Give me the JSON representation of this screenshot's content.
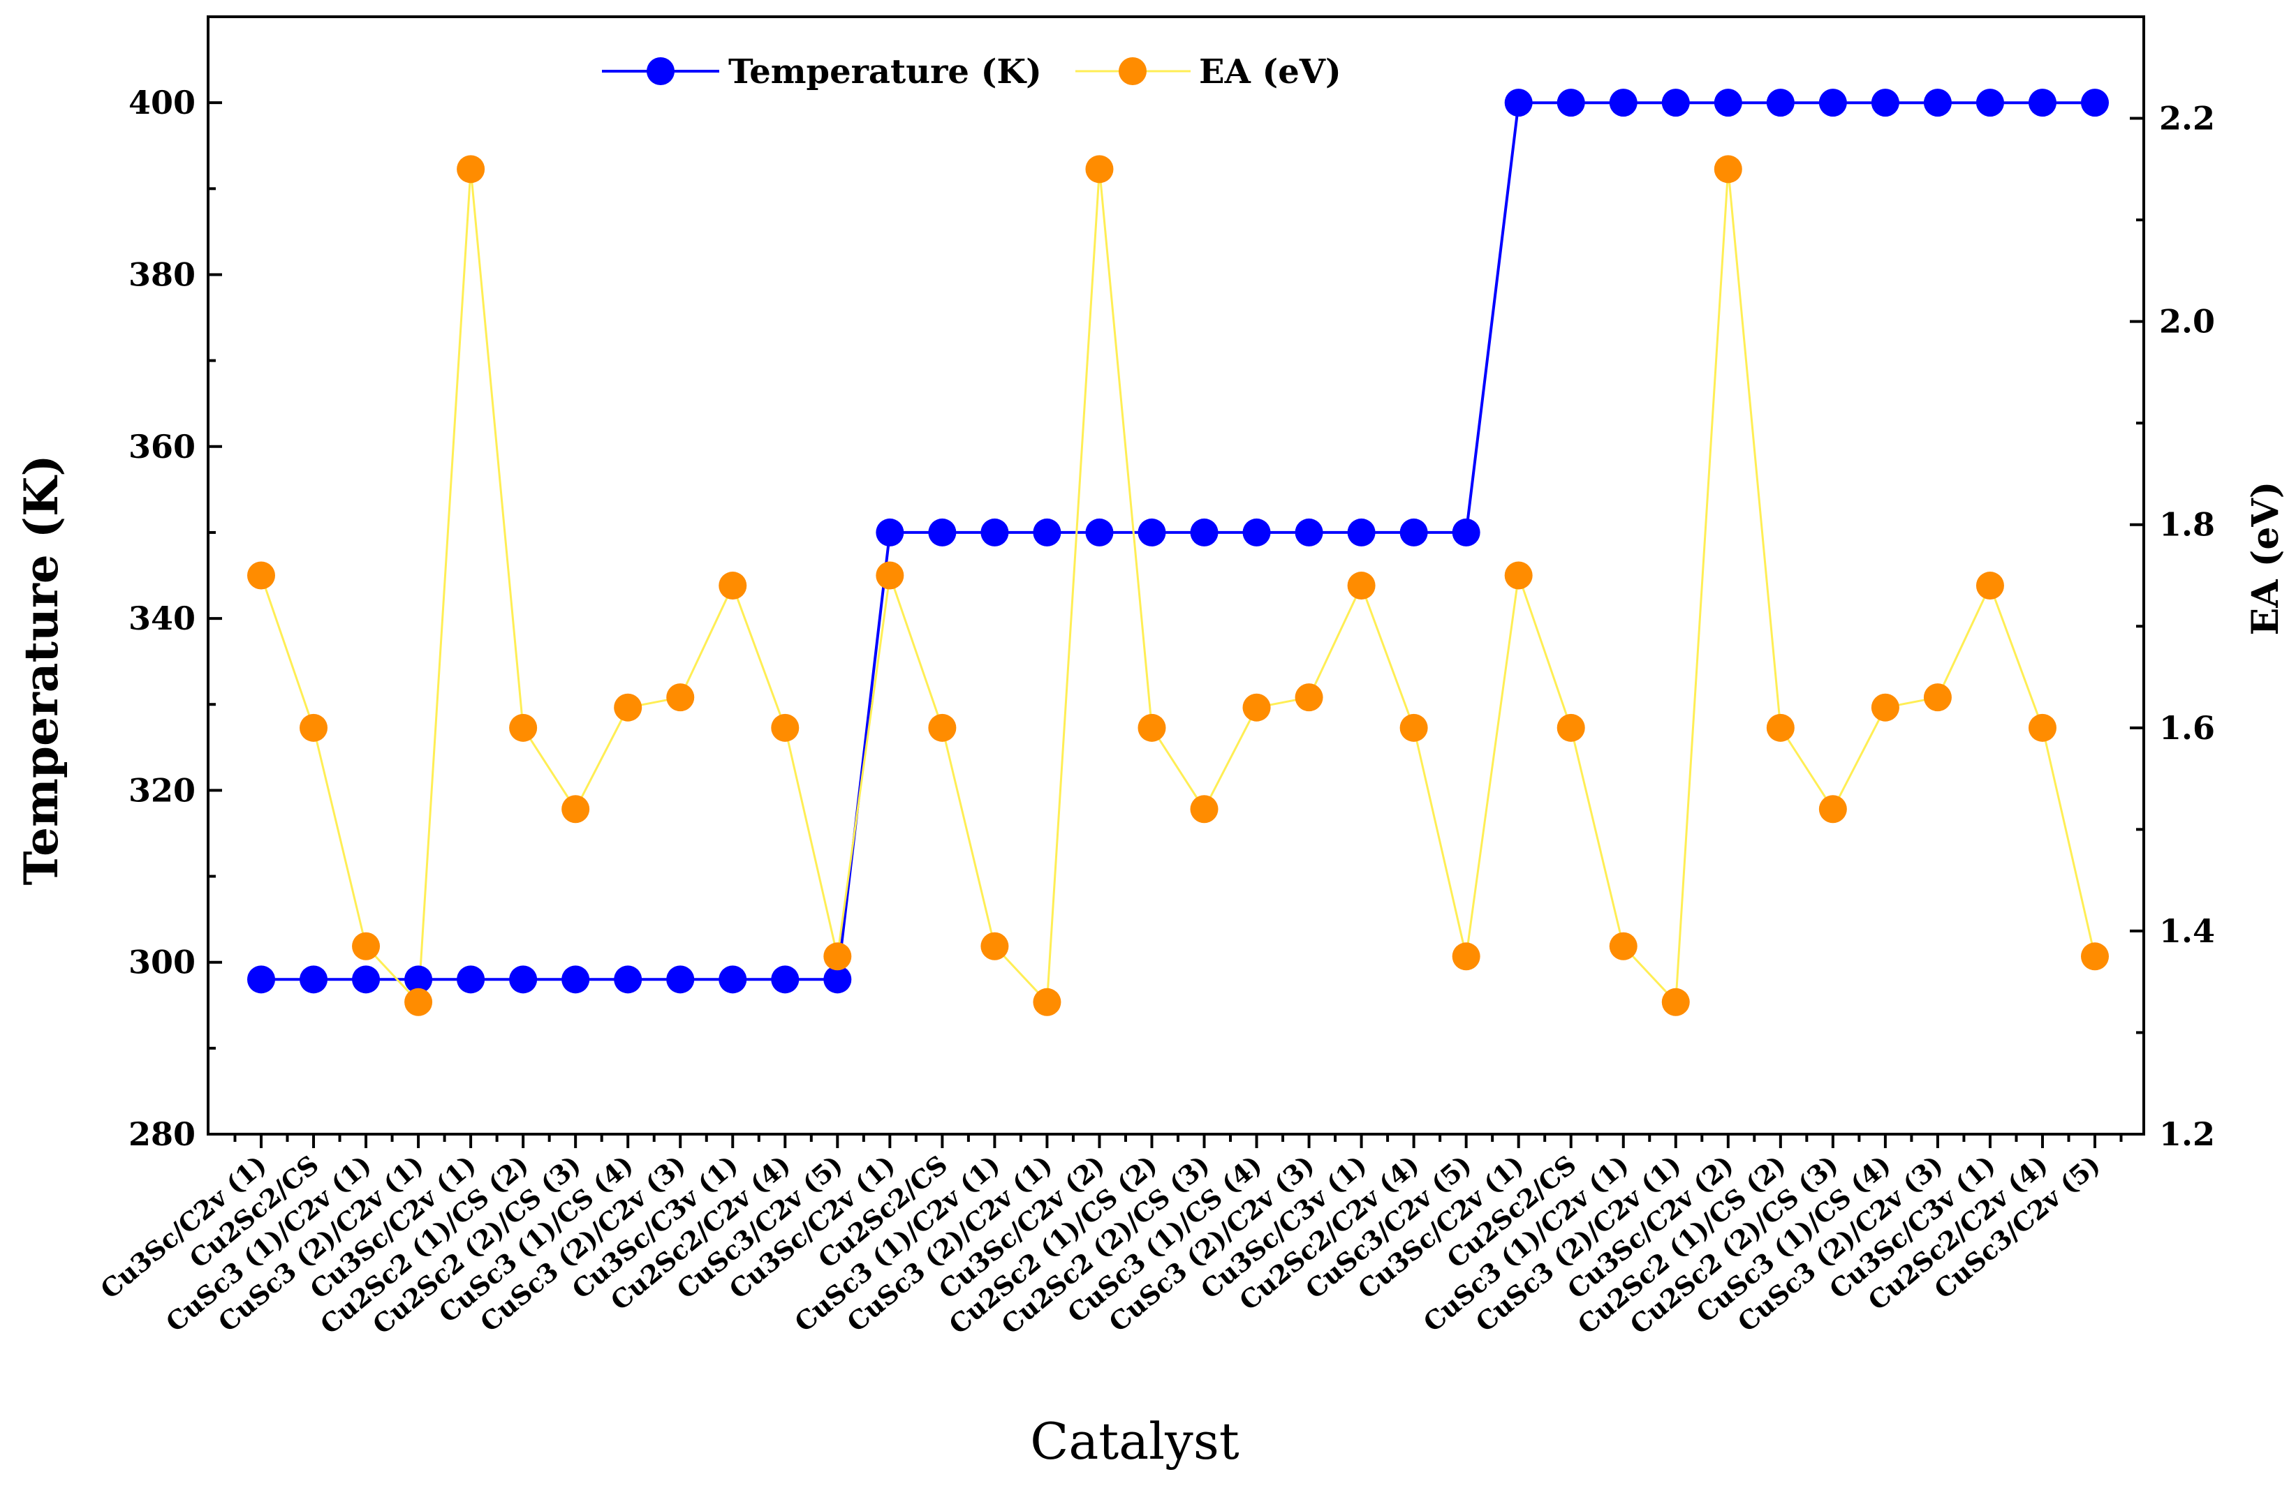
{
  "chart_data": {
    "type": "line",
    "title": "",
    "xlabel": "Catalyst",
    "ylabel": "Temperature (K)",
    "y2label": "EA (eV)",
    "ylim": [
      280,
      410
    ],
    "y2lim": [
      1.2,
      2.3
    ],
    "yticks": [
      "280",
      "300",
      "320",
      "340",
      "360",
      "380",
      "400"
    ],
    "y2ticks": [
      "1.2",
      "1.4",
      "1.6",
      "1.8",
      "2.0",
      "2.2"
    ],
    "legend_position": "top-center",
    "categories": [
      "Cu3Sc/C2v (1)",
      "Cu2Sc2/CS",
      "CuSc3 (1)/C2v (1)",
      "CuSc3 (2)/C2v (1)",
      "Cu3Sc/C2v (1)",
      "Cu2Sc2 (1)/CS (2)",
      "Cu2Sc2 (2)/CS (3)",
      "CuSc3 (1)/CS (4)",
      "CuSc3 (2)/C2v (3)",
      "Cu3Sc/C3v (1)",
      "Cu2Sc2/C2v (4)",
      "CuSc3/C2v (5)",
      "Cu3Sc/C2v (1)",
      "Cu2Sc2/CS",
      "CuSc3 (1)/C2v (1)",
      "CuSc3 (2)/C2v (1)",
      "Cu3Sc/C2v (2)",
      "Cu2Sc2 (1)/CS (2)",
      "Cu2Sc2 (2)/CS (3)",
      "CuSc3 (1)/CS (4)",
      "CuSc3 (2)/C2v (3)",
      "Cu3Sc/C3v (1)",
      "Cu2Sc2/C2v (4)",
      "CuSc3/C2v (5)",
      "Cu3Sc/C2v (1)",
      "Cu2Sc2/CS",
      "CuSc3 (1)/C2v (1)",
      "CuSc3 (2)/C2v (1)",
      "Cu3Sc/C2v (2)",
      "Cu2Sc2 (1)/CS (2)",
      "Cu2Sc2 (2)/CS (3)",
      "CuSc3 (1)/CS (4)",
      "CuSc3 (2)/C2v (3)",
      "Cu3Sc/C3v (1)",
      "Cu2Sc2/C2v (4)",
      "CuSc3/C2v (5)"
    ],
    "series": [
      {
        "name": "Temperature (K)",
        "axis": "left",
        "color": "#0000ff",
        "values": [
          298,
          298,
          298,
          298,
          298,
          298,
          298,
          298,
          298,
          298,
          298,
          298,
          350,
          350,
          350,
          350,
          350,
          350,
          350,
          350,
          350,
          350,
          350,
          350,
          400,
          400,
          400,
          400,
          400,
          400,
          400,
          400,
          400,
          400,
          400,
          400
        ]
      },
      {
        "name": "EA (eV)",
        "axis": "right",
        "color": "#ffee55",
        "marker_color": "#ff8c00",
        "values": [
          1.75,
          1.6,
          1.385,
          1.33,
          2.15,
          1.6,
          1.52,
          1.62,
          1.63,
          1.74,
          1.6,
          1.375,
          1.75,
          1.6,
          1.385,
          1.33,
          2.15,
          1.6,
          1.52,
          1.62,
          1.63,
          1.74,
          1.6,
          1.375,
          1.75,
          1.6,
          1.385,
          1.33,
          2.15,
          1.6,
          1.52,
          1.62,
          1.63,
          1.74,
          1.6,
          1.375
        ]
      }
    ]
  }
}
